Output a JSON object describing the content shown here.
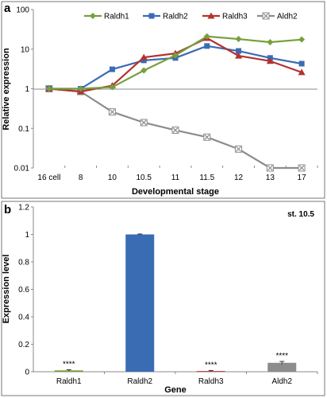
{
  "chart_data": [
    {
      "panel_label": "a",
      "type": "line",
      "x": [
        "16 cell",
        "8",
        "10",
        "10.5",
        "11",
        "11.5",
        "12",
        "13",
        "17"
      ],
      "xlabel": "Developmental stage",
      "ylabel": "Relative expression",
      "yscale": "log",
      "ylim": [
        0.01,
        100
      ],
      "yticks": [
        "0.01",
        "0.1",
        "1",
        "10",
        "100"
      ],
      "grid": false,
      "legend": "top",
      "series": [
        {
          "name": "Raldh1",
          "color": "#77a03c",
          "marker": "diamond",
          "values": [
            1,
            1,
            1.1,
            2.9,
            7,
            21,
            18,
            15,
            17.5
          ]
        },
        {
          "name": "Raldh2",
          "color": "#3a6cb4",
          "marker": "square",
          "values": [
            1,
            1,
            3.1,
            5.2,
            6,
            12,
            9,
            6,
            4.3
          ]
        },
        {
          "name": "Raldh3",
          "color": "#b3322f",
          "marker": "triangle",
          "values": [
            1,
            0.85,
            1.2,
            6.2,
            7.8,
            19,
            6.8,
            5,
            2.6
          ]
        },
        {
          "name": "Aldh2",
          "color": "#8c8c8c",
          "marker": "x",
          "values": [
            1,
            0.85,
            0.26,
            0.14,
            0.09,
            0.06,
            0.03,
            0.01,
            0.01
          ]
        }
      ]
    },
    {
      "panel_label": "b",
      "type": "bar",
      "categories": [
        "Raldh1",
        "Raldh2",
        "Raldh3",
        "Aldh2"
      ],
      "values": [
        0.01,
        1,
        0.005,
        0.065
      ],
      "errors": [
        0.005,
        0.003,
        0.004,
        0.01
      ],
      "colors": [
        "#77a03c",
        "#3a6cb4",
        "#b3322f",
        "#8c8c8c"
      ],
      "annotations": [
        "****",
        "",
        "****",
        "****"
      ],
      "xlabel": "Gene",
      "ylabel": "Expression level",
      "ylim": [
        0,
        1.2
      ],
      "yticks": [
        "0",
        "0.2",
        "0.4",
        "0.6",
        "0.8",
        "1",
        "1.2"
      ],
      "stage_label": "st. 10.5",
      "grid": false
    }
  ]
}
